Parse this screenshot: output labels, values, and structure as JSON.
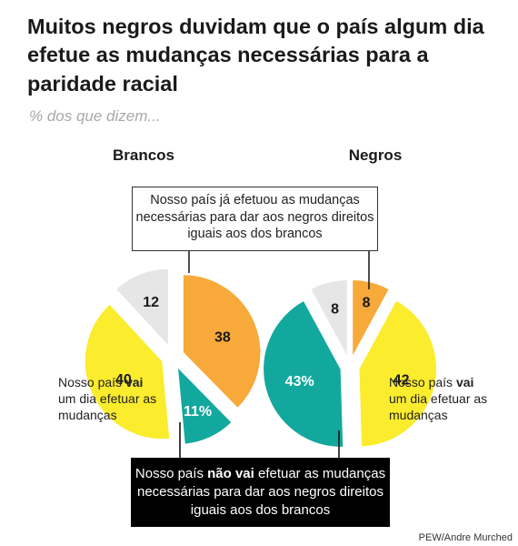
{
  "title": "Muitos negros duvidam que o país algum dia efetue as mudanças necessárias para a paridade racial",
  "subtitle": "% dos que dizem...",
  "source": "PEW/Andre Murched",
  "colors": {
    "already": "#f7a93a",
    "will": "#fbec2d",
    "will_not": "#13a89e",
    "dont_know": "#e6e6e6"
  },
  "chart_data": [
    {
      "type": "pie",
      "title": "Brancos",
      "slices": [
        {
          "key": "already",
          "value": 38,
          "label": "38"
        },
        {
          "key": "will_not",
          "value": 11,
          "label": "11%"
        },
        {
          "key": "will",
          "value": 40,
          "label": "40"
        },
        {
          "key": "dont_know",
          "value": 12,
          "label": "12"
        }
      ]
    },
    {
      "type": "pie",
      "title": "Negros",
      "slices": [
        {
          "key": "already",
          "value": 8,
          "label": "8"
        },
        {
          "key": "will",
          "value": 42,
          "label": "42"
        },
        {
          "key": "will_not",
          "value": 43,
          "label": "43%"
        },
        {
          "key": "dont_know",
          "value": 8,
          "label": "8"
        }
      ]
    }
  ],
  "callouts": {
    "already": "Nosso país já efetuou as mudanças necessárias para dar aos negros direitos iguais aos dos brancos",
    "will_not_prefix": "Nosso país ",
    "will_not_bold": "não vai",
    "will_not_suffix": " efetuar as mudanças necessárias para dar aos negros direitos iguais aos dos brancos",
    "will_prefix": "Nosso país ",
    "will_bold": "vai",
    "will_suffix": " um dia efetuar as mudanças"
  }
}
